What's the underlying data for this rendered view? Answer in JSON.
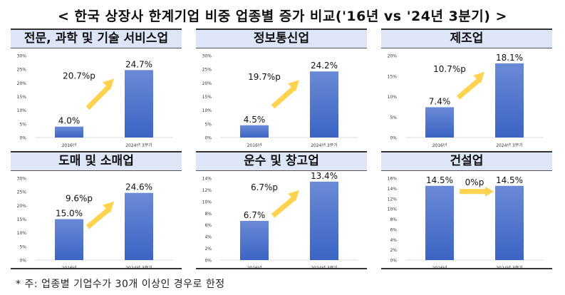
{
  "title": "< 한국 상장사 한계기업 비중 업종별 증가 비교('16년 vs '24년 3분기) >",
  "footnote": "* 주: 업종별 기업수가 30개 이상인 경우로 한정",
  "colors": {
    "bar": "#3b64c4",
    "bar_light": "#6a8ad6",
    "arrow": "#ffd34f",
    "header": "#dde5f6"
  },
  "chart_data": [
    {
      "type": "bar",
      "title": "전문, 과학 및 기술 서비스업",
      "categories": [
        "2016년",
        "2024년 3분기"
      ],
      "values": [
        4.0,
        24.7
      ],
      "labels": [
        "4.0%",
        "24.7%"
      ],
      "delta": "20.7%p",
      "ylim": [
        0,
        30
      ],
      "yticks": [
        "0%",
        "5%",
        "10%",
        "15%",
        "20%",
        "25%",
        "30%"
      ]
    },
    {
      "type": "bar",
      "title": "정보통신업",
      "categories": [
        "2016년",
        "2024년 3분기"
      ],
      "values": [
        4.5,
        24.2
      ],
      "labels": [
        "4.5%",
        "24.2%"
      ],
      "delta": "19.7%p",
      "ylim": [
        0,
        30
      ],
      "yticks": [
        "0%",
        "5%",
        "10%",
        "15%",
        "20%",
        "25%",
        "30%"
      ]
    },
    {
      "type": "bar",
      "title": "제조업",
      "categories": [
        "2016년",
        "2024년 3분기"
      ],
      "values": [
        7.4,
        18.1
      ],
      "labels": [
        "7.4%",
        "18.1%"
      ],
      "delta": "10.7%p",
      "ylim": [
        0,
        20
      ],
      "yticks": [
        "0%",
        "5%",
        "10%",
        "15%",
        "20%"
      ]
    },
    {
      "type": "bar",
      "title": "도매 및 소매업",
      "categories": [
        "2016년",
        "2024년 3분기"
      ],
      "values": [
        15.0,
        24.6
      ],
      "labels": [
        "15.0%",
        "24.6%"
      ],
      "delta": "9.6%p",
      "ylim": [
        0,
        30
      ],
      "yticks": [
        "0%",
        "5%",
        "10%",
        "15%",
        "20%",
        "25%",
        "30%"
      ]
    },
    {
      "type": "bar",
      "title": "운수 및 창고업",
      "categories": [
        "2016년",
        "2024년 3분기"
      ],
      "values": [
        6.7,
        13.4
      ],
      "labels": [
        "6.7%",
        "13.4%"
      ],
      "delta": "6.7%p",
      "ylim": [
        0,
        14
      ],
      "yticks": [
        "0%",
        "2%",
        "4%",
        "6%",
        "8%",
        "10%",
        "12%",
        "14%"
      ]
    },
    {
      "type": "bar",
      "title": "건설업",
      "categories": [
        "2016년",
        "2024년 3분기"
      ],
      "values": [
        14.5,
        14.5
      ],
      "labels": [
        "14.5%",
        "14.5%"
      ],
      "delta": "0%p",
      "ylim": [
        0,
        16
      ],
      "yticks": [
        "0%",
        "2%",
        "4%",
        "6%",
        "8%",
        "10%",
        "12%",
        "14%",
        "16%"
      ]
    }
  ]
}
